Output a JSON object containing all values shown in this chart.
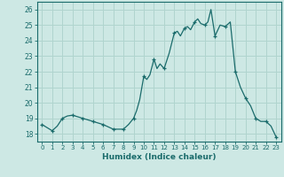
{
  "title": "",
  "xlabel": "Humidex (Indice chaleur)",
  "ylabel": "",
  "bg_color": "#cde8e4",
  "grid_color": "#b0d4ce",
  "line_color": "#1a6b6b",
  "marker_color": "#1a6b6b",
  "xlim": [
    -0.5,
    23.5
  ],
  "ylim": [
    17.5,
    26.5
  ],
  "yticks": [
    18,
    19,
    20,
    21,
    22,
    23,
    24,
    25,
    26
  ],
  "xticks": [
    0,
    1,
    2,
    3,
    4,
    5,
    6,
    7,
    8,
    9,
    10,
    11,
    12,
    13,
    14,
    15,
    16,
    17,
    18,
    19,
    20,
    21,
    22,
    23
  ],
  "x": [
    0,
    1,
    2,
    3,
    4,
    5,
    6,
    7,
    8,
    9,
    10,
    11,
    12,
    13,
    14,
    15,
    16,
    17,
    18,
    19,
    20,
    21,
    22,
    23
  ],
  "y": [
    18.6,
    18.2,
    19.0,
    19.2,
    19.0,
    18.8,
    18.6,
    18.3,
    18.3,
    19.0,
    21.7,
    22.8,
    22.2,
    24.5,
    24.8,
    25.2,
    25.0,
    24.3,
    24.9,
    22.0,
    20.3,
    19.0,
    18.8,
    17.8
  ],
  "curve_detail_x": [
    0,
    0.5,
    1,
    1.5,
    2,
    2.5,
    3,
    3.5,
    4,
    4.5,
    5,
    5.5,
    6,
    6.5,
    7,
    7.5,
    8,
    8.5,
    9,
    9.3,
    9.6,
    10,
    10.3,
    10.6,
    11,
    11.3,
    11.6,
    12,
    12.5,
    13,
    13.3,
    13.6,
    14,
    14.3,
    14.6,
    15,
    15.3,
    15.6,
    16,
    16.3,
    16.6,
    17,
    17.5,
    18,
    18.5,
    19,
    19.5,
    20,
    20.5,
    21,
    21.5,
    22,
    22.5,
    23
  ],
  "curve_detail_y": [
    18.6,
    18.4,
    18.2,
    18.5,
    19.0,
    19.15,
    19.2,
    19.1,
    19.0,
    18.9,
    18.8,
    18.7,
    18.6,
    18.45,
    18.3,
    18.3,
    18.3,
    18.6,
    19.0,
    19.5,
    20.2,
    21.7,
    21.5,
    21.8,
    22.8,
    22.2,
    22.5,
    22.2,
    23.2,
    24.5,
    24.6,
    24.3,
    24.8,
    24.9,
    24.7,
    25.2,
    25.4,
    25.1,
    25.0,
    25.2,
    26.0,
    24.3,
    25.0,
    24.9,
    25.2,
    22.0,
    21.0,
    20.3,
    19.8,
    19.0,
    18.8,
    18.8,
    18.5,
    17.8
  ]
}
